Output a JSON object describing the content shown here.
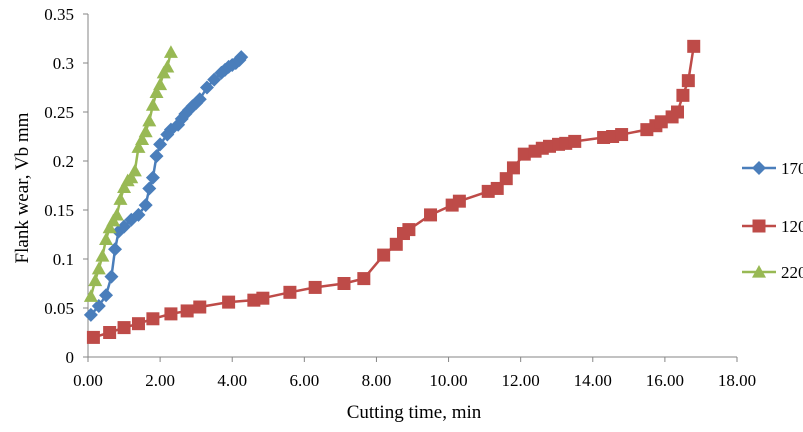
{
  "chart_data": {
    "type": "scatter",
    "title": "",
    "xlabel": "Cutting time, min",
    "ylabel": "Flank wear, Vb mm",
    "xlim": [
      0,
      18
    ],
    "ylim": [
      0,
      0.35
    ],
    "x_ticks": [
      0,
      2,
      4,
      6,
      8,
      10,
      12,
      14,
      16,
      18
    ],
    "x_tick_labels": [
      "0.00",
      "2.00",
      "4.00",
      "6.00",
      "8.00",
      "10.00",
      "12.00",
      "14.00",
      "16.00",
      "18.00"
    ],
    "y_ticks": [
      0,
      0.05,
      0.1,
      0.15,
      0.2,
      0.25,
      0.3,
      0.35
    ],
    "y_tick_labels": [
      "0",
      "0.05",
      "0.1",
      "0.15",
      "0.2",
      "0.25",
      "0.3",
      "0.35"
    ],
    "grid": false,
    "legend_position": "right",
    "series": [
      {
        "name": "170",
        "color": "#4a7ebb",
        "marker": "diamond",
        "x": [
          0.08,
          0.3,
          0.5,
          0.65,
          0.75,
          0.85,
          1.0,
          1.2,
          1.4,
          1.6,
          1.7,
          1.8,
          1.9,
          2.0,
          2.2,
          2.3,
          2.5,
          2.6,
          2.7,
          2.8,
          2.9,
          3.0,
          3.1,
          3.3,
          3.5,
          3.7,
          3.8,
          3.9,
          4.0,
          4.1,
          4.2,
          4.25
        ],
        "y": [
          0.043,
          0.052,
          0.063,
          0.082,
          0.11,
          0.128,
          0.133,
          0.14,
          0.145,
          0.155,
          0.172,
          0.183,
          0.205,
          0.217,
          0.227,
          0.232,
          0.237,
          0.243,
          0.248,
          0.252,
          0.256,
          0.259,
          0.263,
          0.275,
          0.283,
          0.29,
          0.293,
          0.296,
          0.298,
          0.3,
          0.303,
          0.306
        ]
      },
      {
        "name": "120",
        "color": "#be4b48",
        "marker": "square",
        "x": [
          0.15,
          0.6,
          1.0,
          1.4,
          1.8,
          2.3,
          2.75,
          3.1,
          3.9,
          4.6,
          4.85,
          5.6,
          6.3,
          7.1,
          7.65,
          8.2,
          8.55,
          8.75,
          8.9,
          9.5,
          10.1,
          10.3,
          11.1,
          11.35,
          11.6,
          11.8,
          12.1,
          12.4,
          12.6,
          12.8,
          13.05,
          13.25,
          13.5,
          14.3,
          14.55,
          14.8,
          15.5,
          15.75,
          15.9,
          16.2,
          16.35,
          16.5,
          16.65,
          16.8
        ],
        "y": [
          0.02,
          0.025,
          0.03,
          0.034,
          0.039,
          0.044,
          0.047,
          0.051,
          0.056,
          0.058,
          0.06,
          0.066,
          0.071,
          0.075,
          0.08,
          0.104,
          0.115,
          0.126,
          0.13,
          0.145,
          0.155,
          0.159,
          0.169,
          0.172,
          0.182,
          0.193,
          0.207,
          0.21,
          0.213,
          0.215,
          0.217,
          0.218,
          0.22,
          0.224,
          0.225,
          0.227,
          0.232,
          0.236,
          0.24,
          0.245,
          0.25,
          0.267,
          0.282,
          0.317
        ]
      },
      {
        "name": "220",
        "color": "#98b954",
        "marker": "triangle",
        "x": [
          0.08,
          0.2,
          0.3,
          0.4,
          0.5,
          0.6,
          0.7,
          0.8,
          0.9,
          1.0,
          1.1,
          1.2,
          1.3,
          1.4,
          1.5,
          1.6,
          1.7,
          1.8,
          1.9,
          2.0,
          2.1,
          2.2,
          2.3
        ],
        "y": [
          0.062,
          0.078,
          0.09,
          0.103,
          0.12,
          0.132,
          0.139,
          0.145,
          0.161,
          0.173,
          0.18,
          0.183,
          0.19,
          0.214,
          0.222,
          0.23,
          0.241,
          0.257,
          0.27,
          0.278,
          0.29,
          0.296,
          0.311
        ]
      }
    ]
  }
}
